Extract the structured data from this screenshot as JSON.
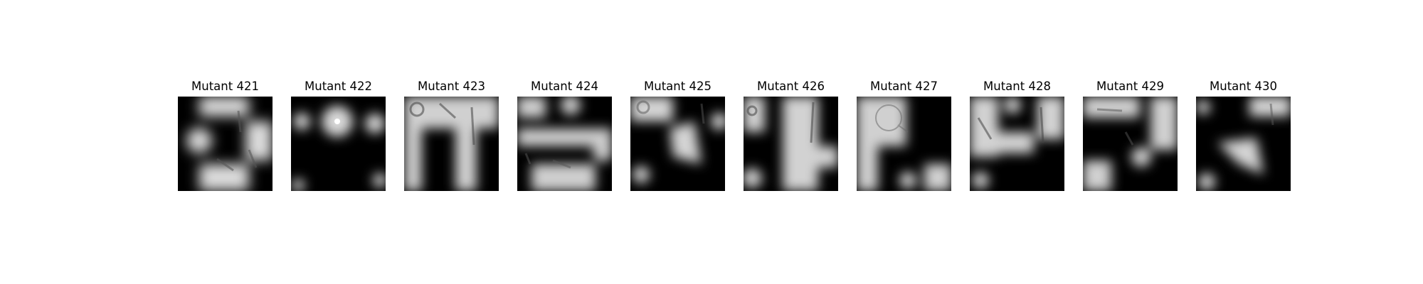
{
  "panels": [
    {
      "title": "Mutant 421"
    },
    {
      "title": "Mutant 422"
    },
    {
      "title": "Mutant 423"
    },
    {
      "title": "Mutant 424"
    },
    {
      "title": "Mutant 425"
    },
    {
      "title": "Mutant 426"
    },
    {
      "title": "Mutant 427"
    },
    {
      "title": "Mutant 428"
    },
    {
      "title": "Mutant 429"
    },
    {
      "title": "Mutant 430"
    }
  ]
}
